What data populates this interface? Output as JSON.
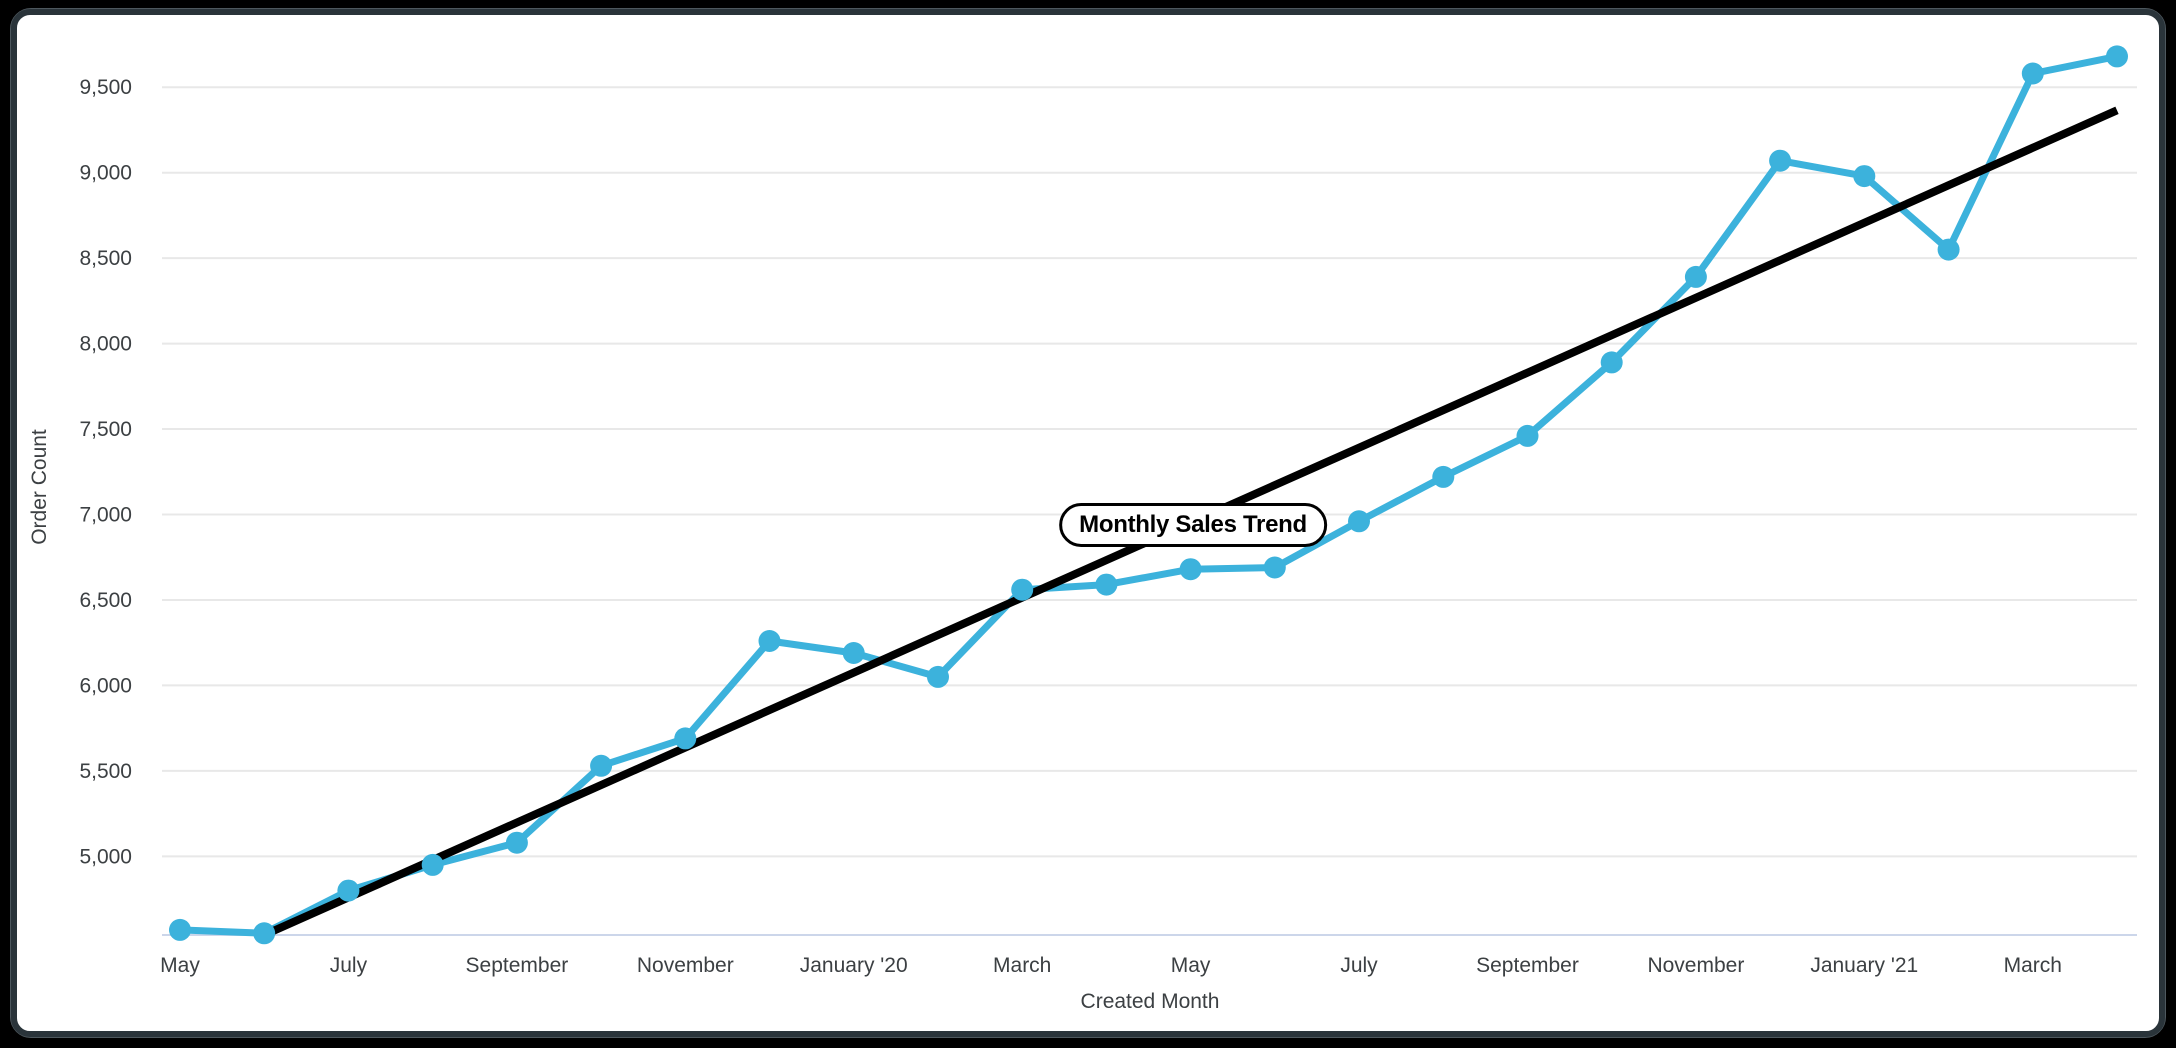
{
  "window": {
    "background": "#000000",
    "frame_border_color": "#2a343a",
    "frame_highlight_color": "#4e585e",
    "card_background": "#ffffff"
  },
  "chart_data": {
    "type": "line",
    "title": "",
    "annotation_label": "Monthly Sales Trend",
    "xlabel": "Created Month",
    "ylabel": "Order Count",
    "categories": [
      "May 2019",
      "June 2019",
      "July 2019",
      "August 2019",
      "September 2019",
      "October 2019",
      "November 2019",
      "December 2019",
      "January 2020",
      "February 2020",
      "March 2020",
      "April 2020",
      "May 2020",
      "June 2020",
      "July 2020",
      "August 2020",
      "September 2020",
      "October 2020",
      "November 2020",
      "December 2020",
      "January 2021",
      "February 2021",
      "March 2021",
      "April 2021"
    ],
    "series": [
      {
        "name": "Order Count",
        "color": "#3cb2dc",
        "values": [
          4570,
          4550,
          4800,
          4950,
          5080,
          5530,
          5690,
          6260,
          6190,
          6050,
          6560,
          6590,
          6680,
          6690,
          6960,
          7220,
          7460,
          7890,
          8390,
          9070,
          8980,
          8550,
          9580,
          9680
        ]
      },
      {
        "name": "Linear Trendline",
        "color": "#000000",
        "trend": true,
        "start_index": 1,
        "end_index": 23,
        "start_value": 4540,
        "end_value": 9365
      }
    ],
    "x_tick_indices": [
      0,
      2,
      4,
      6,
      8,
      10,
      12,
      14,
      16,
      18,
      20,
      22
    ],
    "x_tick_labels": [
      "May",
      "July",
      "September",
      "November",
      "January '20",
      "March",
      "May",
      "July",
      "September",
      "November",
      "January '21",
      "March"
    ],
    "y_ticks": [
      5000,
      5500,
      6000,
      6500,
      7000,
      7500,
      8000,
      8500,
      9000,
      9500
    ],
    "y_tick_labels": [
      "5,000",
      "5,500",
      "6,000",
      "6,500",
      "7,000",
      "7,500",
      "8,000",
      "8,500",
      "9,000",
      "9,500"
    ],
    "ylim": [
      4540,
      9700
    ],
    "grid": "horizontal",
    "legend": "none",
    "colors": {
      "series": "#3cb2dc",
      "trend": "#000000",
      "gridline": "#e8e8e8",
      "axis_line": "#ccd6ea",
      "text": "#3c4043"
    }
  }
}
